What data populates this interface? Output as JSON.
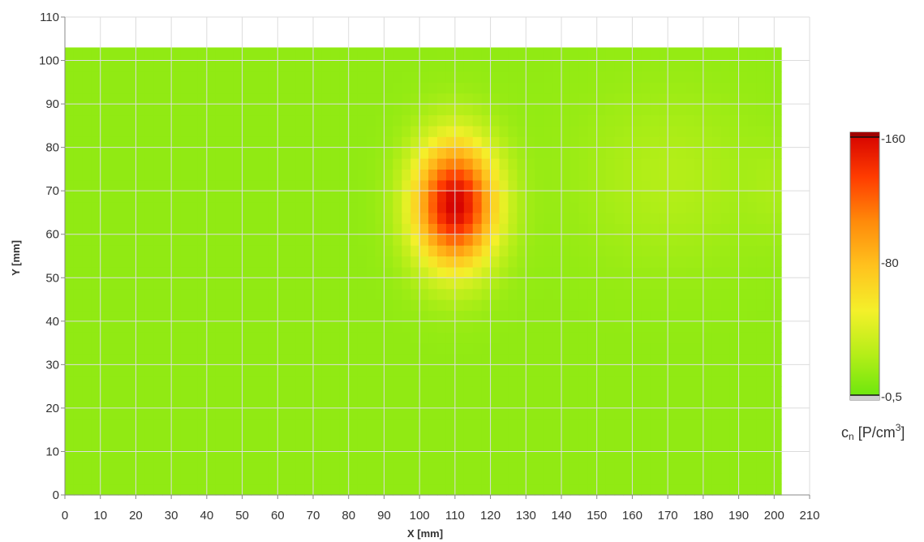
{
  "chart_data": {
    "type": "heatmap",
    "xlabel": "X [mm]",
    "ylabel": "Y [mm]",
    "xlim": [
      0,
      210
    ],
    "ylim": [
      0,
      110
    ],
    "x_ticks": [
      "0",
      "10",
      "20",
      "30",
      "40",
      "50",
      "60",
      "70",
      "80",
      "90",
      "100",
      "110",
      "120",
      "130",
      "140",
      "150",
      "160",
      "170",
      "180",
      "190",
      "200",
      "210"
    ],
    "y_ticks": [
      "0",
      "10",
      "20",
      "30",
      "40",
      "50",
      "60",
      "70",
      "80",
      "90",
      "100",
      "110"
    ],
    "data_extent": {
      "x": [
        0,
        202
      ],
      "y": [
        0,
        103
      ]
    },
    "grid": true,
    "colorbar": {
      "label_base": "c",
      "label_sub": "n",
      "label_unit": " [P/cm",
      "label_sup": "3",
      "label_end": "]",
      "min": 0.5,
      "max": 160,
      "ticks": [
        "-160",
        "-80",
        "-0,5"
      ],
      "colors": [
        "#66e60c",
        "#b4ee18",
        "#f4f02a",
        "#ffc21e",
        "#ff8a0a",
        "#ff3c00",
        "#d40000"
      ]
    },
    "background_value": 15,
    "hotspots": [
      {
        "x": 110,
        "y": 67,
        "sx": 8,
        "sy": 10,
        "peak": 145
      },
      {
        "x": 170,
        "y": 73,
        "sx": 18,
        "sy": 14,
        "peak": 12
      },
      {
        "x": 200,
        "y": 70,
        "sx": 5,
        "sy": 8,
        "peak": 6
      }
    ]
  }
}
